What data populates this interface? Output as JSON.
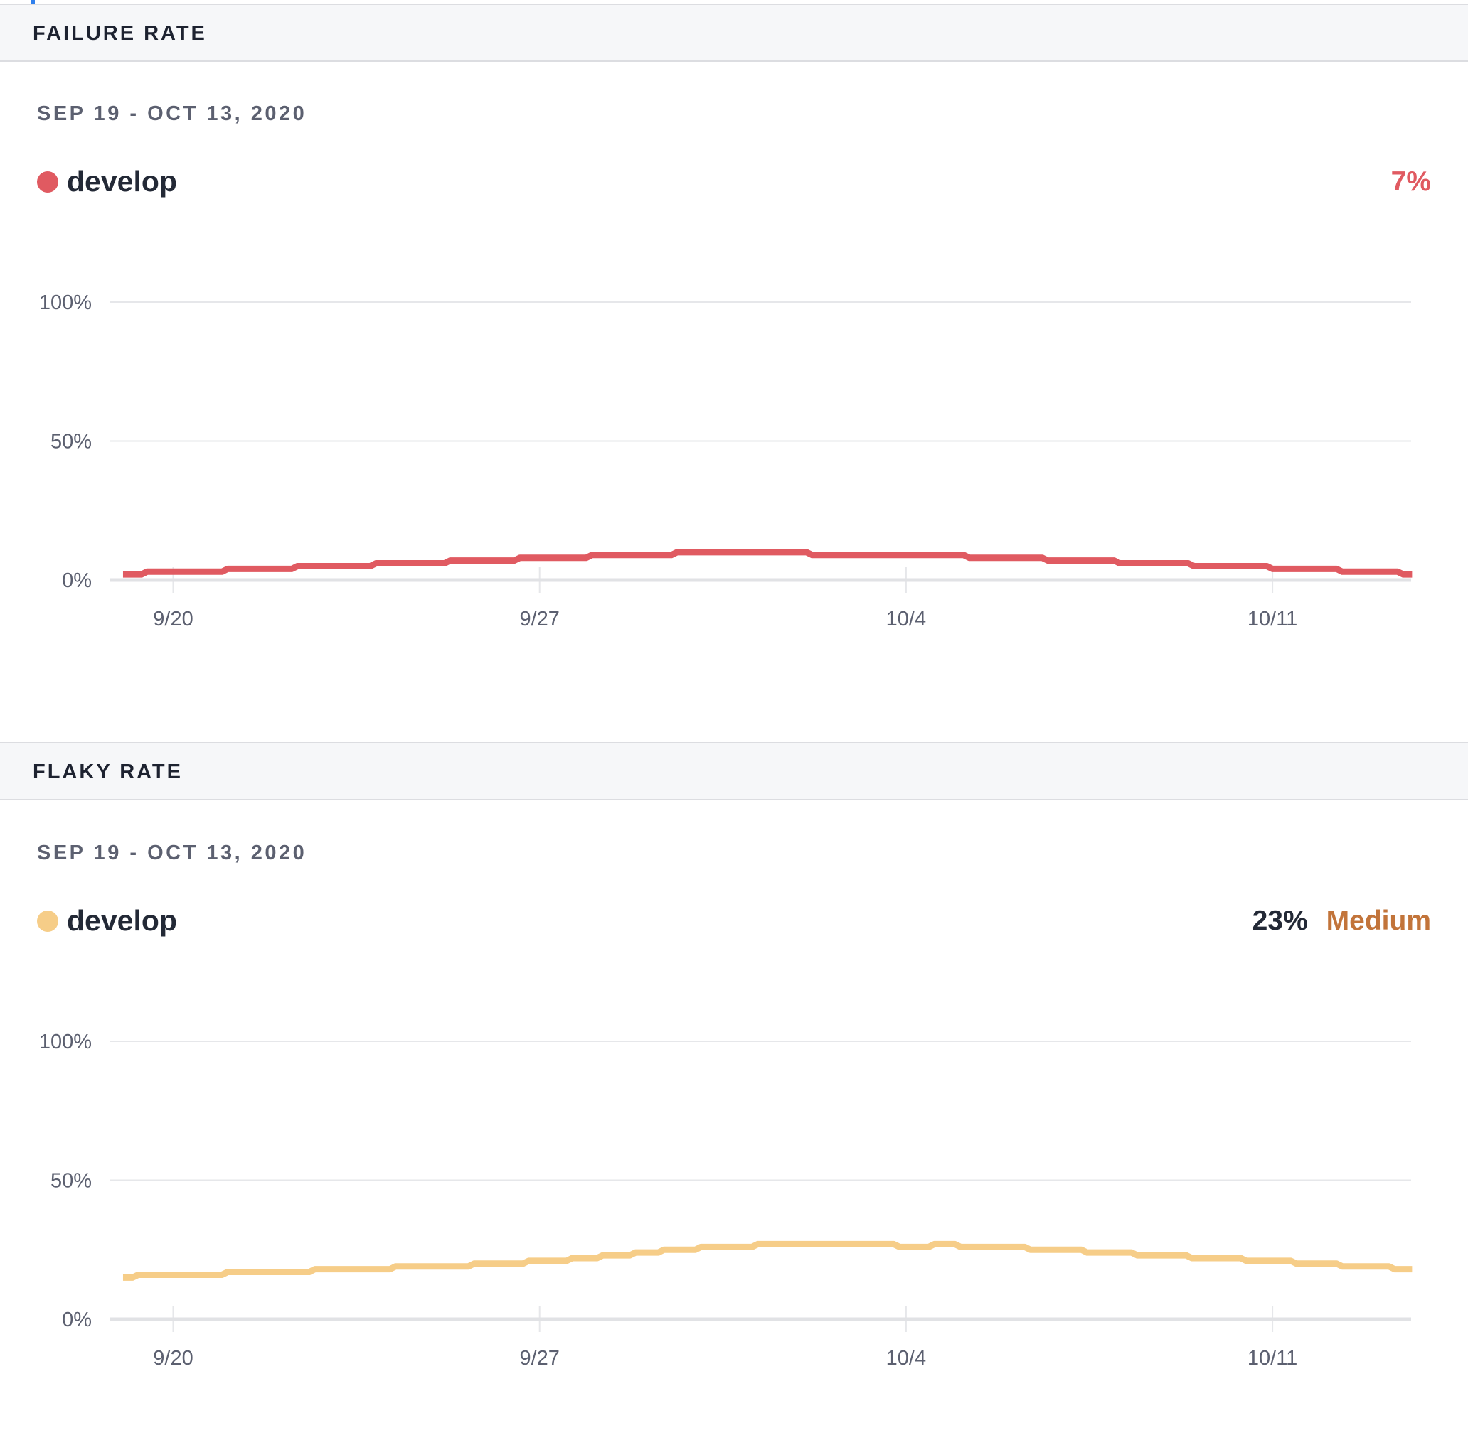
{
  "colors": {
    "failure": "#e05a61",
    "flaky": "#f6cd88",
    "medium": "#c2743a",
    "grid": "#e6e7ea",
    "baseline": "#e1e2e5",
    "accent": "#2f80ed"
  },
  "sections": [
    {
      "title": "FAILURE RATE",
      "date_range": "SEP 19 - OCT 13, 2020",
      "legend_label": "develop",
      "summary_value": "7%",
      "summary_level": ""
    },
    {
      "title": "FLAKY RATE",
      "date_range": "SEP 19 - OCT 13, 2020",
      "legend_label": "develop",
      "summary_value": "23%",
      "summary_level": "Medium"
    }
  ],
  "chart_data": [
    {
      "type": "line",
      "interpolation": "step",
      "title": "FAILURE RATE",
      "ylim": [
        0,
        100
      ],
      "y_ticks": [
        "100%",
        "50%",
        "0%"
      ],
      "y_tick_values": [
        100,
        50,
        0
      ],
      "x_ticks": [
        "9/20",
        "9/27",
        "10/4",
        "10/11"
      ],
      "x_tick_values": [
        "2020-09-20",
        "2020-09-27",
        "2020-10-04",
        "2020-10-11"
      ],
      "xlim": [
        "2020-09-19T01:00",
        "2020-10-13T16:00"
      ],
      "grid": true,
      "series": [
        {
          "name": "develop",
          "color": "#e05a61",
          "points": [
            [
              "2020-09-19T01:00",
              2
            ],
            [
              "2020-09-19T12:00",
              3
            ],
            [
              "2020-09-21T01:00",
              4
            ],
            [
              "2020-09-22T09:00",
              5
            ],
            [
              "2020-09-23T21:00",
              6
            ],
            [
              "2020-09-25T07:00",
              7
            ],
            [
              "2020-09-26T15:00",
              8
            ],
            [
              "2020-09-28T00:00",
              9
            ],
            [
              "2020-09-29T15:00",
              10
            ],
            [
              "2020-10-02T05:00",
              9
            ],
            [
              "2020-10-05T05:00",
              8
            ],
            [
              "2020-10-06T17:00",
              7
            ],
            [
              "2020-10-08T02:00",
              6
            ],
            [
              "2020-10-09T12:00",
              5
            ],
            [
              "2020-10-11T00:00",
              4
            ],
            [
              "2020-10-12T08:00",
              3
            ],
            [
              "2020-10-13T12:00",
              2
            ],
            [
              "2020-10-13T16:00",
              2
            ]
          ]
        }
      ]
    },
    {
      "type": "line",
      "interpolation": "step",
      "title": "FLAKY RATE",
      "ylim": [
        0,
        100
      ],
      "y_ticks": [
        "100%",
        "50%",
        "0%"
      ],
      "y_tick_values": [
        100,
        50,
        0
      ],
      "x_ticks": [
        "9/20",
        "9/27",
        "10/4",
        "10/11"
      ],
      "x_tick_values": [
        "2020-09-20",
        "2020-09-27",
        "2020-10-04",
        "2020-10-11"
      ],
      "xlim": [
        "2020-09-19T01:00",
        "2020-10-13T16:00"
      ],
      "grid": true,
      "series": [
        {
          "name": "develop",
          "color": "#f6cd88",
          "points": [
            [
              "2020-09-19T01:00",
              15
            ],
            [
              "2020-09-19T08:00",
              16
            ],
            [
              "2020-09-21T01:00",
              17
            ],
            [
              "2020-09-22T17:00",
              18
            ],
            [
              "2020-09-24T06:00",
              19
            ],
            [
              "2020-09-25T18:00",
              20
            ],
            [
              "2020-09-26T19:00",
              21
            ],
            [
              "2020-09-27T15:00",
              22
            ],
            [
              "2020-09-28T05:00",
              23
            ],
            [
              "2020-09-28T20:00",
              24
            ],
            [
              "2020-09-29T09:00",
              25
            ],
            [
              "2020-09-30T02:00",
              26
            ],
            [
              "2020-10-01T04:00",
              27
            ],
            [
              "2020-10-03T21:00",
              26
            ],
            [
              "2020-10-04T13:00",
              27
            ],
            [
              "2020-10-05T01:00",
              26
            ],
            [
              "2020-10-06T09:00",
              25
            ],
            [
              "2020-10-07T11:00",
              24
            ],
            [
              "2020-10-08T10:00",
              23
            ],
            [
              "2020-10-09T11:00",
              22
            ],
            [
              "2020-10-10T12:00",
              21
            ],
            [
              "2020-10-11T11:00",
              20
            ],
            [
              "2020-10-12T08:00",
              19
            ],
            [
              "2020-10-13T08:00",
              18
            ],
            [
              "2020-10-13T16:00",
              18
            ]
          ]
        }
      ]
    }
  ]
}
